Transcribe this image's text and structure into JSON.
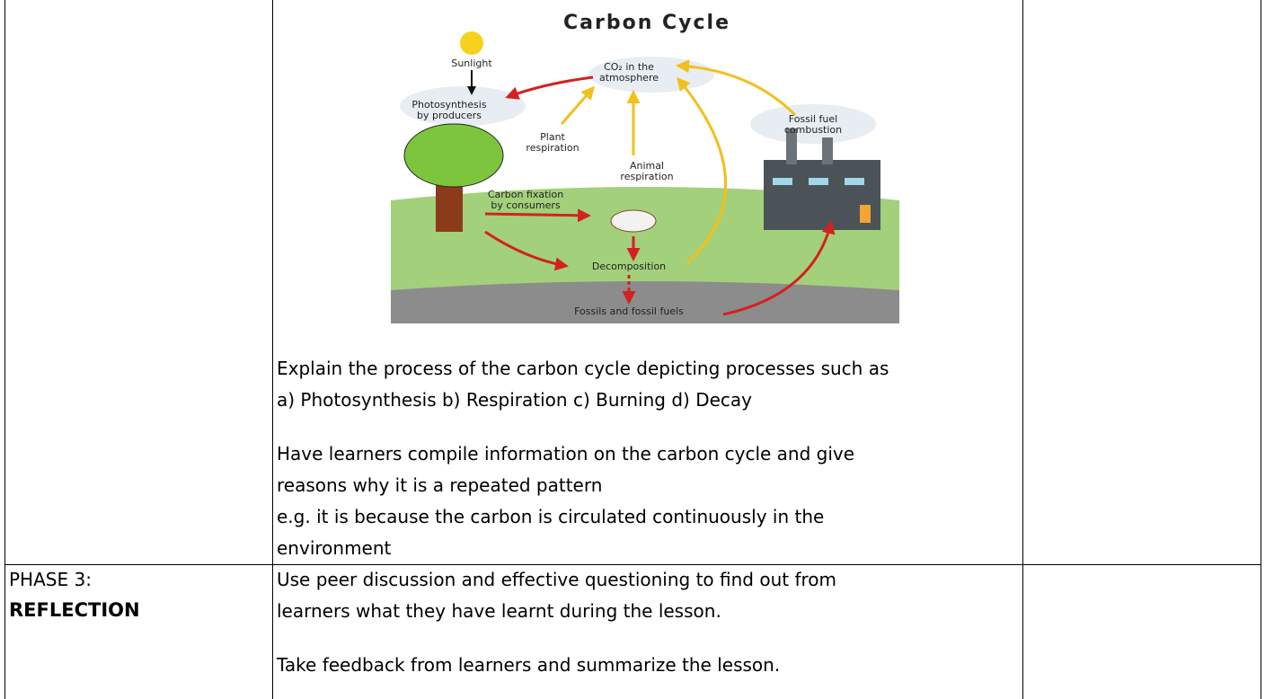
{
  "table": {
    "rows": [
      {
        "diagram": {
          "title": "Carbon Cycle",
          "labels": {
            "sunlight": [
              "Sunlight"
            ],
            "co2": [
              "CO₂ in the",
              "atmosphere"
            ],
            "photosynthesis": [
              "Photosynthesis",
              "by producers"
            ],
            "plant_respiration": [
              "Plant",
              "respiration"
            ],
            "combustion": [
              "Fossil fuel",
              "combustion"
            ],
            "animal_respiration": [
              "Animal",
              "respiration"
            ],
            "fixation": [
              "Carbon fixation",
              "by consumers"
            ],
            "decomposition": [
              "Decomposition"
            ],
            "fossils": [
              "Fossils and fossil fuels"
            ]
          }
        },
        "paragraphs": [
          [
            "Explain the process of the carbon cycle depicting processes such as",
            "a) Photosynthesis b) Respiration c) Burning  d) Decay"
          ],
          [
            "Have learners compile information on the carbon cycle and give",
            "reasons why it is a repeated pattern",
            "e.g. it is because the carbon is circulated continuously in the",
            "environment"
          ]
        ]
      },
      {
        "phase": "PHASE 3:",
        "phase_name": "REFLECTION",
        "paragraphs": [
          [
            "Use peer discussion and effective questioning to find out from",
            "learners what they have learnt during the lesson."
          ],
          [
            "Take feedback from learners and summarize the lesson."
          ]
        ]
      }
    ]
  }
}
